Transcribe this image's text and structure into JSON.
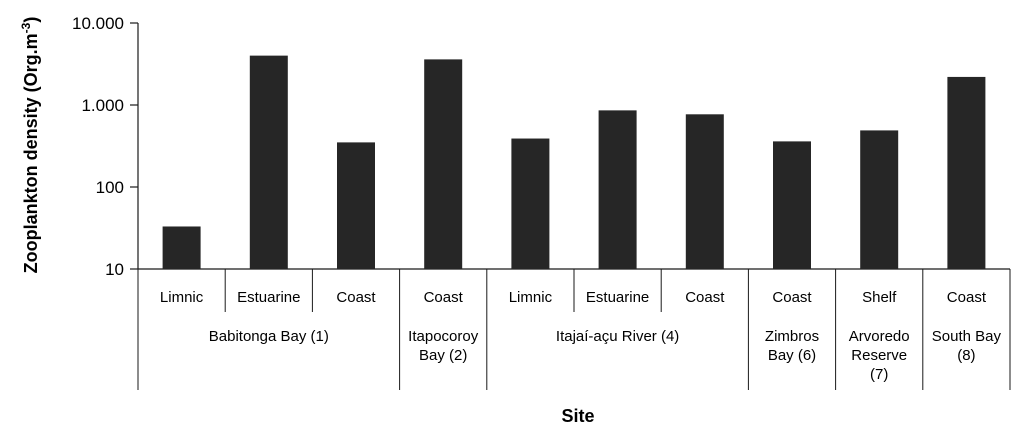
{
  "chart_data": {
    "type": "bar",
    "title": "",
    "xlabel": "Site",
    "ylabel_main": "Zooplankton density (Org.m",
    "ylabel_sup": "-3",
    "ylabel_close": ")",
    "yscale": "log",
    "ylim": [
      10,
      10000
    ],
    "yticks": [
      {
        "value": 10,
        "label": "10"
      },
      {
        "value": 100,
        "label": "100"
      },
      {
        "value": 1000,
        "label": "1.000"
      },
      {
        "value": 10000,
        "label": "10.000"
      }
    ],
    "categories": [
      "Limnic",
      "Estuarine",
      "Coast",
      "Coast",
      "Limnic",
      "Estuarine",
      "Coast",
      "Coast",
      "Shelf",
      "Coast"
    ],
    "values": [
      33,
      4000,
      350,
      3600,
      390,
      860,
      770,
      360,
      490,
      2200
    ],
    "groups": [
      {
        "lines": [
          "Babitonga Bay (1)"
        ],
        "span": 3
      },
      {
        "lines": [
          "Itapocoroy",
          "Bay (2)"
        ],
        "span": 1
      },
      {
        "lines": [
          "Itajaí-açu River (4)"
        ],
        "span": 3
      },
      {
        "lines": [
          "Zimbros",
          "Bay (6)"
        ],
        "span": 1
      },
      {
        "lines": [
          "Arvoredo",
          "Reserve",
          "(7)"
        ],
        "span": 1
      },
      {
        "lines": [
          "South Bay",
          "(8)"
        ],
        "span": 1
      }
    ],
    "bar_color": "#262626",
    "grid": false,
    "legend": "none"
  }
}
